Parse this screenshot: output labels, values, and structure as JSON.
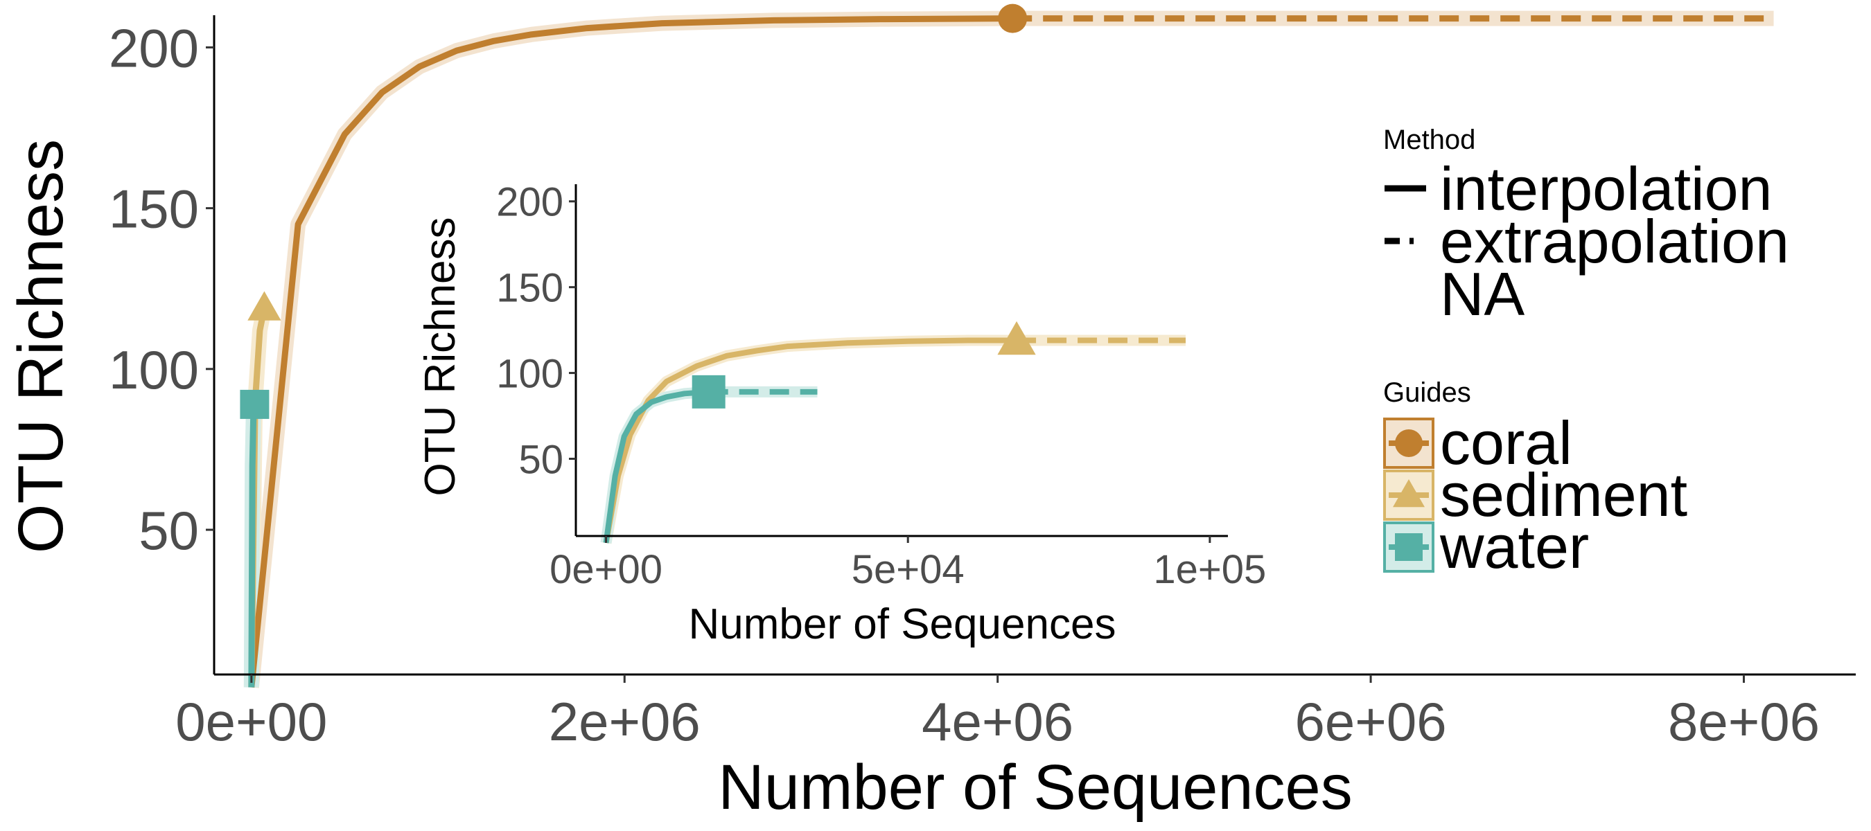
{
  "colors": {
    "coral": "#c07f2f",
    "sediment": "#d8b567",
    "water": "#55b0a5",
    "coral_band": "#f3e3cf",
    "sediment_band": "#f6ead0",
    "water_band": "#d3ece8",
    "axis": "#000000",
    "tick_text": "#4d4d4d"
  },
  "chart_data": [
    {
      "id": "main",
      "type": "line",
      "xlabel": "Number of Sequences",
      "ylabel": "OTU Richness",
      "xlim": [
        -200000,
        8600000
      ],
      "ylim": [
        5,
        210
      ],
      "xticks": [
        0,
        2000000,
        4000000,
        6000000,
        8000000
      ],
      "xtick_labels": [
        "0e+00",
        "2e+06",
        "4e+06",
        "6e+06",
        "8e+06"
      ],
      "yticks": [
        50,
        100,
        150,
        200
      ],
      "ytick_labels": [
        "50",
        "100",
        "150",
        "200"
      ],
      "grid": false,
      "series": [
        {
          "name": "coral",
          "shape": "circle",
          "interpolation": [
            [
              0,
              1
            ],
            [
              250000,
              145
            ],
            [
              500000,
              173
            ],
            [
              700000,
              186
            ],
            [
              900000,
              194
            ],
            [
              1100000,
              199
            ],
            [
              1300000,
              202
            ],
            [
              1500000,
              204
            ],
            [
              1800000,
              206
            ],
            [
              2200000,
              207.5
            ],
            [
              2800000,
              208.4
            ],
            [
              3400000,
              208.8
            ],
            [
              4080000,
              209
            ]
          ],
          "observed": [
            4080000,
            209
          ],
          "extrapolation": [
            [
              4080000,
              209
            ],
            [
              8160000,
              209
            ]
          ]
        },
        {
          "name": "sediment",
          "shape": "triangle",
          "interpolation": [
            [
              0,
              1
            ],
            [
              20000,
              90
            ],
            [
              45000,
              112
            ],
            [
              69000,
              119
            ]
          ],
          "observed": [
            69000,
            119
          ],
          "extrapolation": []
        },
        {
          "name": "water",
          "shape": "square",
          "interpolation": [
            [
              0,
              1
            ],
            [
              5000,
              70
            ],
            [
              10000,
              84
            ],
            [
              17000,
              89
            ]
          ],
          "observed": [
            17000,
            89
          ],
          "extrapolation": []
        }
      ]
    },
    {
      "id": "inset",
      "type": "line",
      "xlabel": "Number of Sequences",
      "ylabel": "OTU Richness",
      "xlim": [
        -5000,
        103000
      ],
      "ylim": [
        5,
        210
      ],
      "xticks": [
        0,
        50000,
        100000
      ],
      "xtick_labels": [
        "0e+00",
        "5e+04",
        "1e+05"
      ],
      "yticks": [
        50,
        100,
        150,
        200
      ],
      "ytick_labels": [
        "50",
        "100",
        "150",
        "200"
      ],
      "grid": false,
      "series": [
        {
          "name": "sediment",
          "shape": "triangle",
          "interpolation": [
            [
              0,
              1
            ],
            [
              2000,
              40
            ],
            [
              4000,
              64
            ],
            [
              7000,
              84
            ],
            [
              10000,
              95
            ],
            [
              15000,
              104
            ],
            [
              20000,
              110
            ],
            [
              25000,
              113
            ],
            [
              30000,
              115.5
            ],
            [
              40000,
              117.5
            ],
            [
              50000,
              118.5
            ],
            [
              60000,
              119
            ],
            [
              68000,
              119
            ]
          ],
          "observed": [
            68000,
            119
          ],
          "extrapolation": [
            [
              68000,
              119
            ],
            [
              96000,
              119
            ]
          ]
        },
        {
          "name": "water",
          "shape": "square",
          "interpolation": [
            [
              0,
              1
            ],
            [
              1500,
              40
            ],
            [
              3000,
              63
            ],
            [
              5000,
              76
            ],
            [
              7500,
              83
            ],
            [
              10000,
              86
            ],
            [
              13000,
              88
            ],
            [
              17000,
              89
            ]
          ],
          "observed": [
            17000,
            89
          ],
          "extrapolation": [
            [
              17000,
              89
            ],
            [
              35000,
              89
            ]
          ]
        }
      ]
    }
  ],
  "legend": {
    "placement": "right",
    "method": {
      "title": "Method",
      "items": [
        {
          "label": "interpolation",
          "style": "solid"
        },
        {
          "label": "extrapolation",
          "style": "dashed"
        },
        {
          "label": "NA",
          "style": "none"
        }
      ]
    },
    "guides": {
      "title": "Guides",
      "items": [
        {
          "label": "coral",
          "shape": "circle"
        },
        {
          "label": "sediment",
          "shape": "triangle"
        },
        {
          "label": "water",
          "shape": "square"
        }
      ]
    }
  }
}
